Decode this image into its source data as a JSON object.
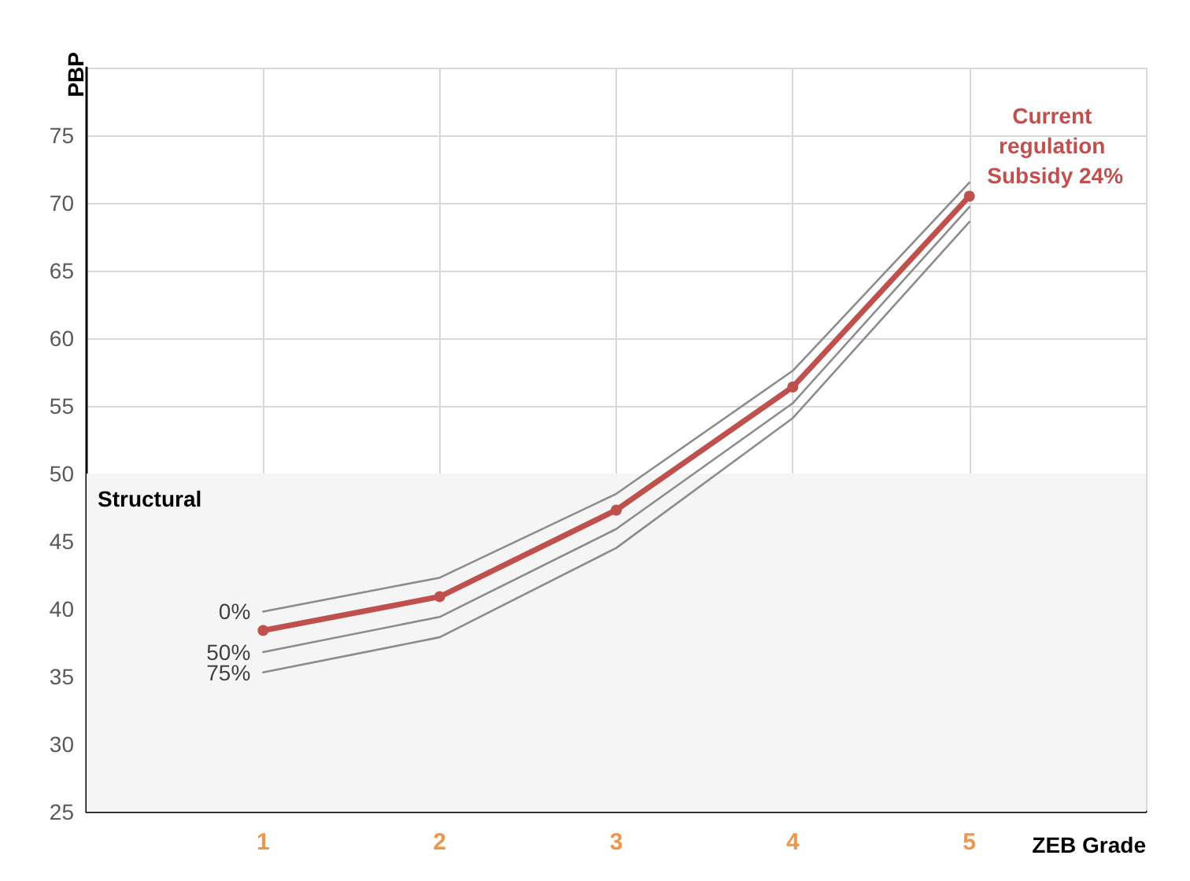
{
  "chart_data": {
    "type": "line",
    "xlabel": "ZEB Grade",
    "ylabel": "PBP",
    "x": [
      1,
      2,
      3,
      4,
      5
    ],
    "xlim": [
      0,
      6
    ],
    "xticks": [
      1,
      2,
      3,
      4,
      5,
      {
        "value": 6,
        "label": null
      }
    ],
    "ylim": [
      25,
      80
    ],
    "yticks": [
      25,
      30,
      35,
      40,
      45,
      50,
      55,
      60,
      65,
      70,
      75,
      {
        "value": 80,
        "label": null
      }
    ],
    "series": [
      {
        "name": "0%",
        "color": "#8c8c8c",
        "marker": "none",
        "values": [
          39.8,
          42.3,
          48.5,
          57.6,
          71.5
        ]
      },
      {
        "name": "50%",
        "color": "#8c8c8c",
        "marker": "none",
        "values": [
          36.8,
          39.4,
          45.9,
          55.2,
          69.7
        ]
      },
      {
        "name": "75%",
        "color": "#8c8c8c",
        "marker": "none",
        "values": [
          35.3,
          37.9,
          44.5,
          54.1,
          68.6
        ]
      },
      {
        "name": "Current regulation Subsidy 24%",
        "color": "#c0504d",
        "marker": "circle",
        "values": [
          38.4,
          40.9,
          47.3,
          56.4,
          70.5
        ]
      }
    ],
    "bands": [
      {
        "axis": "y",
        "from": 25,
        "to": 50,
        "label": "Structural",
        "color": "#f5f5f5"
      }
    ],
    "grid": true,
    "legend": false,
    "line_style": "solid"
  }
}
